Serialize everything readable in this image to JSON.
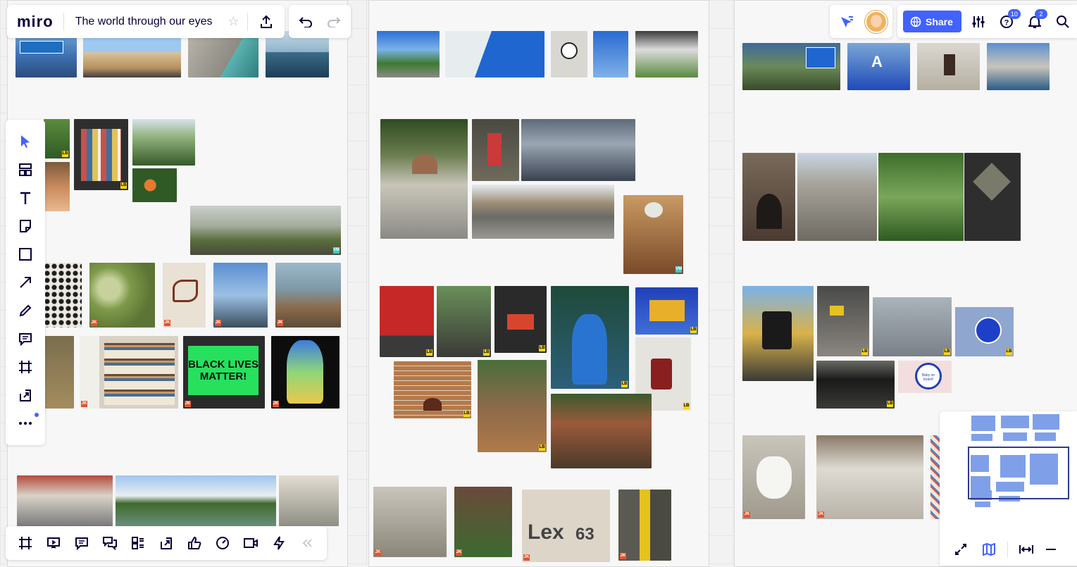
{
  "app": {
    "logo": "miro",
    "board_title": "The world through our eyes"
  },
  "toolbar_top": {
    "star_icon": "star-icon",
    "export_icon": "upload-icon",
    "undo_icon": "undo-icon",
    "redo_icon": "redo-icon"
  },
  "header_right": {
    "share_label": "Share",
    "help_badge": "10",
    "notifications_badge": "2"
  },
  "left_tools": [
    {
      "name": "select-tool",
      "icon": "cursor-icon"
    },
    {
      "name": "templates-tool",
      "icon": "templates-icon"
    },
    {
      "name": "text-tool",
      "icon": "text-icon"
    },
    {
      "name": "sticky-note-tool",
      "icon": "sticky-note-icon"
    },
    {
      "name": "shape-tool",
      "icon": "square-icon"
    },
    {
      "name": "connection-line-tool",
      "icon": "arrow-icon"
    },
    {
      "name": "pen-tool",
      "icon": "pen-icon"
    },
    {
      "name": "comment-tool",
      "icon": "comment-icon"
    },
    {
      "name": "frame-tool",
      "icon": "frame-icon"
    },
    {
      "name": "upload-tool",
      "icon": "upload-icon"
    },
    {
      "name": "more-tools",
      "icon": "more-icon"
    }
  ],
  "bottom_tools": [
    {
      "name": "frames-button",
      "icon": "frame-icon"
    },
    {
      "name": "present-button",
      "icon": "present-icon"
    },
    {
      "name": "comments-button",
      "icon": "comment-icon"
    },
    {
      "name": "chat-button",
      "icon": "chat-icon"
    },
    {
      "name": "cards-button",
      "icon": "cards-icon"
    },
    {
      "name": "share-screen-button",
      "icon": "share-screen-icon"
    },
    {
      "name": "voting-button",
      "icon": "thumbs-up-icon"
    },
    {
      "name": "timer-button",
      "icon": "timer-icon"
    },
    {
      "name": "video-button",
      "icon": "video-icon"
    },
    {
      "name": "activity-button",
      "icon": "lightning-icon"
    },
    {
      "name": "collapse-button",
      "icon": "double-chevron-left-icon"
    }
  ],
  "photo_tags": {
    "jk": "JK",
    "lb": "LB",
    "vm": "VM"
  },
  "board_texts": {
    "sign_lexington": "Lex",
    "sign_number": "63",
    "blm_line1": "BLACK LIVES",
    "blm_line2": "MATTER!",
    "sign_a": "A",
    "baby_on_board": "Baby on board!"
  },
  "colors": {
    "accent": "#4262ff",
    "brand_text": "#050038",
    "tag_jk": "#e2532d",
    "tag_lb": "#f5d21c",
    "tag_vm": "#3fc7c0"
  }
}
